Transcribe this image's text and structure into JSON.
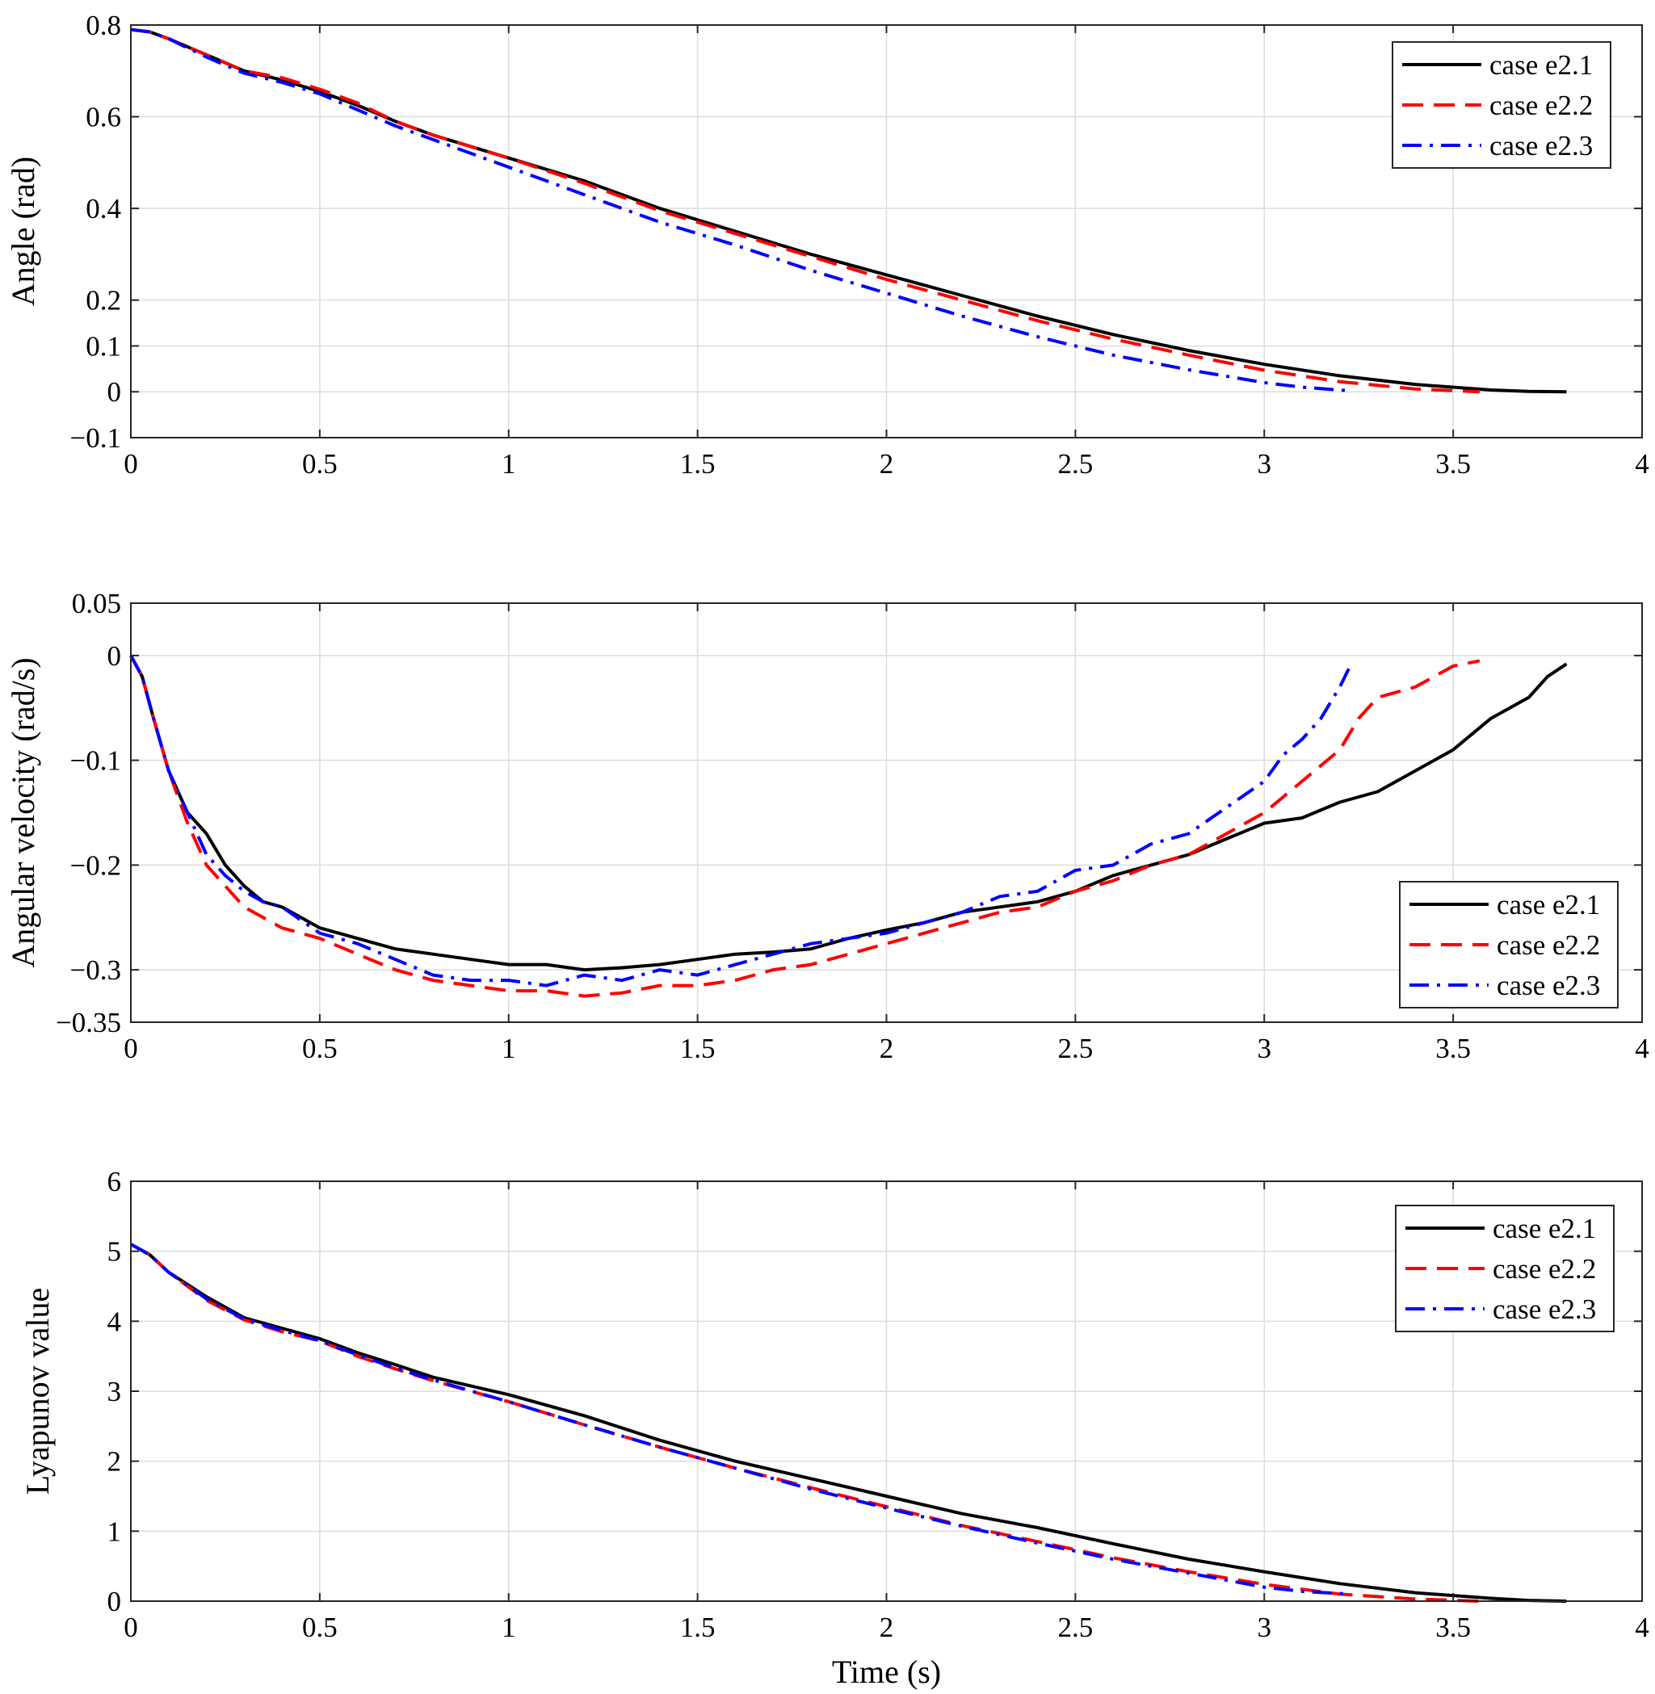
{
  "chart_data": [
    {
      "type": "line",
      "title": "",
      "xlabel": "",
      "ylabel": "Angle (rad)",
      "xlim": [
        0,
        4
      ],
      "ylim": [
        -0.1,
        0.8
      ],
      "xticks": [
        0,
        0.5,
        1,
        1.5,
        2,
        2.5,
        3,
        3.5,
        4
      ],
      "xtick_labels": [
        "0",
        "0.5",
        "1",
        "1.5",
        "2",
        "2.5",
        "3",
        "3.5",
        "4"
      ],
      "yticks": [
        -0.1,
        0,
        0.1,
        0.2,
        0.4,
        0.6,
        0.8
      ],
      "ytick_labels": [
        "−0.1",
        "0",
        "0.1",
        "0.2",
        "0.4",
        "0.6",
        "0.8"
      ],
      "grid": true,
      "legend_position": "top-right",
      "series": [
        {
          "name": "case e2.1",
          "color": "#000000",
          "style": "solid",
          "x": [
            0,
            0.05,
            0.1,
            0.2,
            0.3,
            0.4,
            0.5,
            0.6,
            0.7,
            0.8,
            1.0,
            1.2,
            1.4,
            1.6,
            1.8,
            2.0,
            2.2,
            2.4,
            2.6,
            2.8,
            3.0,
            3.2,
            3.4,
            3.6,
            3.7,
            3.8
          ],
          "values": [
            0.79,
            0.785,
            0.77,
            0.735,
            0.7,
            0.68,
            0.655,
            0.625,
            0.59,
            0.56,
            0.51,
            0.46,
            0.4,
            0.35,
            0.3,
            0.255,
            0.21,
            0.165,
            0.125,
            0.09,
            0.06,
            0.035,
            0.016,
            0.004,
            0.001,
            0.0
          ]
        },
        {
          "name": "case e2.2",
          "color": "#ff0000",
          "style": "dashed",
          "x": [
            0,
            0.05,
            0.1,
            0.2,
            0.3,
            0.4,
            0.5,
            0.6,
            0.7,
            0.8,
            1.0,
            1.2,
            1.4,
            1.6,
            1.8,
            2.0,
            2.2,
            2.4,
            2.6,
            2.8,
            3.0,
            3.2,
            3.4,
            3.57
          ],
          "values": [
            0.79,
            0.785,
            0.77,
            0.735,
            0.7,
            0.685,
            0.66,
            0.63,
            0.59,
            0.56,
            0.51,
            0.455,
            0.395,
            0.345,
            0.295,
            0.245,
            0.2,
            0.155,
            0.115,
            0.08,
            0.047,
            0.022,
            0.006,
            0.0
          ]
        },
        {
          "name": "case e2.3",
          "color": "#0000ff",
          "style": "dashdot",
          "x": [
            0,
            0.05,
            0.1,
            0.2,
            0.3,
            0.4,
            0.5,
            0.6,
            0.7,
            0.8,
            1.0,
            1.2,
            1.4,
            1.6,
            1.8,
            2.0,
            2.2,
            2.4,
            2.6,
            2.8,
            3.0,
            3.1,
            3.23
          ],
          "values": [
            0.79,
            0.785,
            0.77,
            0.73,
            0.695,
            0.675,
            0.65,
            0.615,
            0.58,
            0.55,
            0.49,
            0.43,
            0.37,
            0.32,
            0.265,
            0.215,
            0.165,
            0.12,
            0.08,
            0.048,
            0.02,
            0.01,
            0.002
          ]
        }
      ]
    },
    {
      "type": "line",
      "title": "",
      "xlabel": "",
      "ylabel": "Angular velocity (rad/s)",
      "xlim": [
        0,
        4
      ],
      "ylim": [
        -0.35,
        0.05
      ],
      "xticks": [
        0,
        0.5,
        1,
        1.5,
        2,
        2.5,
        3,
        3.5,
        4
      ],
      "xtick_labels": [
        "0",
        "0.5",
        "1",
        "1.5",
        "2",
        "2.5",
        "3",
        "3.5",
        "4"
      ],
      "yticks": [
        -0.35,
        -0.3,
        -0.2,
        -0.1,
        0,
        0.05
      ],
      "ytick_labels": [
        "−0.35",
        "−0.3",
        "−0.2",
        "−0.1",
        "0",
        "0.05"
      ],
      "grid": true,
      "legend_position": "bottom-right",
      "series": [
        {
          "name": "case e2.1",
          "color": "#000000",
          "style": "solid",
          "x": [
            0,
            0.03,
            0.06,
            0.1,
            0.15,
            0.2,
            0.25,
            0.3,
            0.35,
            0.4,
            0.5,
            0.6,
            0.7,
            0.8,
            0.9,
            1.0,
            1.1,
            1.2,
            1.3,
            1.4,
            1.5,
            1.6,
            1.7,
            1.8,
            1.9,
            2.0,
            2.1,
            2.2,
            2.3,
            2.4,
            2.5,
            2.6,
            2.7,
            2.8,
            2.9,
            3.0,
            3.1,
            3.2,
            3.3,
            3.4,
            3.5,
            3.6,
            3.7,
            3.75,
            3.8
          ],
          "values": [
            0,
            -0.02,
            -0.06,
            -0.11,
            -0.15,
            -0.17,
            -0.2,
            -0.22,
            -0.235,
            -0.24,
            -0.26,
            -0.27,
            -0.28,
            -0.285,
            -0.29,
            -0.295,
            -0.295,
            -0.3,
            -0.298,
            -0.295,
            -0.29,
            -0.285,
            -0.283,
            -0.28,
            -0.27,
            -0.262,
            -0.255,
            -0.245,
            -0.24,
            -0.235,
            -0.225,
            -0.21,
            -0.2,
            -0.19,
            -0.175,
            -0.16,
            -0.155,
            -0.14,
            -0.13,
            -0.11,
            -0.09,
            -0.06,
            -0.04,
            -0.02,
            -0.008
          ]
        },
        {
          "name": "case e2.2",
          "color": "#ff0000",
          "style": "dashed",
          "x": [
            0,
            0.03,
            0.06,
            0.1,
            0.15,
            0.2,
            0.25,
            0.3,
            0.35,
            0.4,
            0.5,
            0.6,
            0.7,
            0.8,
            0.9,
            1.0,
            1.1,
            1.2,
            1.3,
            1.4,
            1.5,
            1.6,
            1.7,
            1.8,
            1.9,
            2.0,
            2.1,
            2.2,
            2.3,
            2.4,
            2.5,
            2.6,
            2.7,
            2.8,
            2.9,
            3.0,
            3.1,
            3.2,
            3.25,
            3.3,
            3.4,
            3.5,
            3.57
          ],
          "values": [
            0,
            -0.02,
            -0.06,
            -0.11,
            -0.16,
            -0.2,
            -0.22,
            -0.24,
            -0.25,
            -0.26,
            -0.27,
            -0.285,
            -0.3,
            -0.31,
            -0.315,
            -0.32,
            -0.32,
            -0.325,
            -0.322,
            -0.315,
            -0.315,
            -0.31,
            -0.3,
            -0.295,
            -0.285,
            -0.275,
            -0.265,
            -0.255,
            -0.245,
            -0.24,
            -0.225,
            -0.215,
            -0.2,
            -0.19,
            -0.17,
            -0.15,
            -0.12,
            -0.09,
            -0.06,
            -0.04,
            -0.03,
            -0.01,
            -0.005
          ]
        },
        {
          "name": "case e2.3",
          "color": "#0000ff",
          "style": "dashdot",
          "x": [
            0,
            0.03,
            0.06,
            0.1,
            0.15,
            0.2,
            0.25,
            0.3,
            0.35,
            0.4,
            0.5,
            0.6,
            0.7,
            0.8,
            0.9,
            1.0,
            1.1,
            1.2,
            1.3,
            1.4,
            1.5,
            1.6,
            1.7,
            1.8,
            1.9,
            2.0,
            2.1,
            2.2,
            2.3,
            2.4,
            2.5,
            2.6,
            2.7,
            2.8,
            2.9,
            3.0,
            3.05,
            3.1,
            3.15,
            3.2,
            3.23
          ],
          "values": [
            0,
            -0.02,
            -0.06,
            -0.11,
            -0.15,
            -0.19,
            -0.21,
            -0.225,
            -0.235,
            -0.24,
            -0.265,
            -0.275,
            -0.29,
            -0.305,
            -0.31,
            -0.31,
            -0.315,
            -0.305,
            -0.31,
            -0.3,
            -0.305,
            -0.295,
            -0.285,
            -0.275,
            -0.27,
            -0.265,
            -0.255,
            -0.245,
            -0.23,
            -0.225,
            -0.205,
            -0.2,
            -0.18,
            -0.17,
            -0.145,
            -0.12,
            -0.095,
            -0.08,
            -0.06,
            -0.03,
            -0.008
          ]
        }
      ]
    },
    {
      "type": "line",
      "title": "",
      "xlabel": "Time (s)",
      "ylabel": "Lyapunov value",
      "xlim": [
        0,
        4
      ],
      "ylim": [
        0,
        6
      ],
      "xticks": [
        0,
        0.5,
        1,
        1.5,
        2,
        2.5,
        3,
        3.5,
        4
      ],
      "xtick_labels": [
        "0",
        "0.5",
        "1",
        "1.5",
        "2",
        "2.5",
        "3",
        "3.5",
        "4"
      ],
      "yticks": [
        0,
        1,
        2,
        3,
        4,
        5,
        6
      ],
      "ytick_labels": [
        "0",
        "1",
        "2",
        "3",
        "4",
        "5",
        "6"
      ],
      "grid": true,
      "legend_position": "top-right",
      "series": [
        {
          "name": "case e2.1",
          "color": "#000000",
          "style": "solid",
          "x": [
            0,
            0.05,
            0.1,
            0.2,
            0.3,
            0.4,
            0.5,
            0.6,
            0.7,
            0.8,
            1.0,
            1.2,
            1.4,
            1.6,
            1.8,
            2.0,
            2.2,
            2.4,
            2.6,
            2.8,
            3.0,
            3.2,
            3.4,
            3.6,
            3.7,
            3.8
          ],
          "values": [
            5.1,
            4.95,
            4.7,
            4.35,
            4.05,
            3.9,
            3.75,
            3.55,
            3.38,
            3.2,
            2.95,
            2.65,
            2.3,
            2.0,
            1.75,
            1.5,
            1.25,
            1.05,
            0.82,
            0.6,
            0.42,
            0.25,
            0.12,
            0.04,
            0.01,
            0.0
          ]
        },
        {
          "name": "case e2.2",
          "color": "#ff0000",
          "style": "dashed",
          "x": [
            0,
            0.05,
            0.1,
            0.2,
            0.3,
            0.4,
            0.5,
            0.6,
            0.7,
            0.8,
            1.0,
            1.2,
            1.4,
            1.6,
            1.8,
            2.0,
            2.2,
            2.4,
            2.6,
            2.8,
            3.0,
            3.2,
            3.4,
            3.57
          ],
          "values": [
            5.1,
            4.95,
            4.7,
            4.3,
            4.02,
            3.85,
            3.72,
            3.5,
            3.32,
            3.15,
            2.85,
            2.52,
            2.2,
            1.9,
            1.62,
            1.35,
            1.08,
            0.85,
            0.62,
            0.42,
            0.24,
            0.1,
            0.03,
            0.0
          ]
        },
        {
          "name": "case e2.3",
          "color": "#0000ff",
          "style": "dashdot",
          "x": [
            0,
            0.05,
            0.1,
            0.2,
            0.3,
            0.4,
            0.5,
            0.6,
            0.7,
            0.8,
            1.0,
            1.2,
            1.4,
            1.6,
            1.8,
            2.0,
            2.2,
            2.4,
            2.6,
            2.8,
            3.0,
            3.1,
            3.23
          ],
          "values": [
            5.1,
            4.95,
            4.7,
            4.32,
            4.03,
            3.87,
            3.72,
            3.52,
            3.33,
            3.16,
            2.85,
            2.52,
            2.2,
            1.9,
            1.6,
            1.33,
            1.07,
            0.83,
            0.6,
            0.4,
            0.2,
            0.14,
            0.1
          ]
        }
      ]
    }
  ]
}
